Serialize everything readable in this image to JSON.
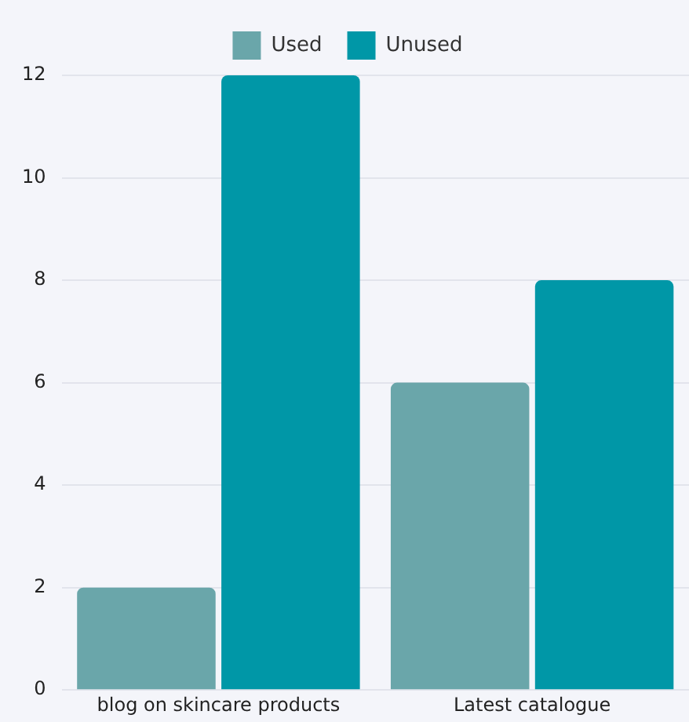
{
  "chart_data": {
    "type": "bar",
    "categories": [
      "blog on skincare products",
      "Latest catalogue"
    ],
    "series": [
      {
        "name": "Used",
        "color": "#6aa6aa",
        "values": [
          2,
          6
        ]
      },
      {
        "name": "Unused",
        "color": "#0097a7",
        "values": [
          12,
          8
        ]
      }
    ],
    "ylim": [
      0,
      12
    ],
    "yticks": [
      0,
      2,
      4,
      6,
      8,
      10,
      12
    ],
    "grid": "y",
    "legend": "top"
  }
}
